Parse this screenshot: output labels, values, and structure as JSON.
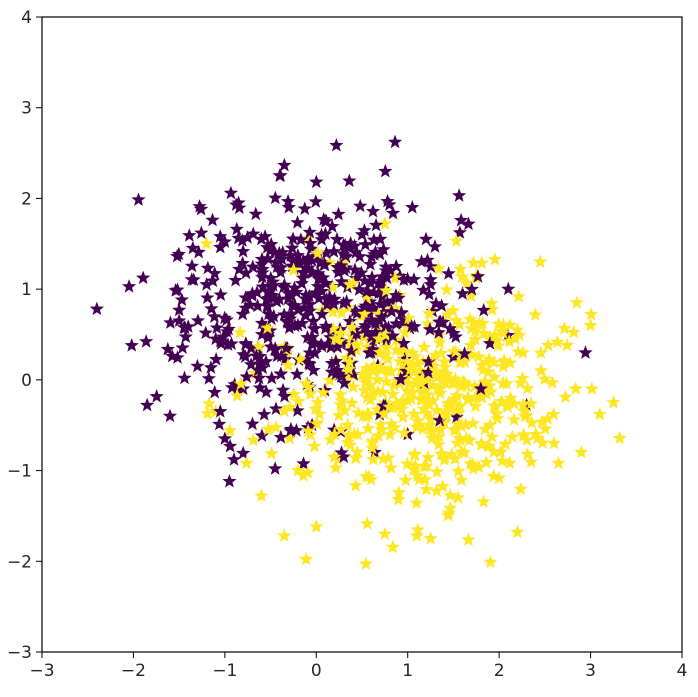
{
  "chart_data": {
    "type": "scatter",
    "title": "",
    "xlabel": "",
    "ylabel": "",
    "xlim": [
      -3,
      4
    ],
    "ylim": [
      -3,
      4
    ],
    "grid": false,
    "marker": "star",
    "x_ticks": [
      "−3",
      "−2",
      "−1",
      "0",
      "1",
      "2",
      "3",
      "4"
    ],
    "y_ticks": [
      "−3",
      "−2",
      "−1",
      "0",
      "1",
      "2",
      "3",
      "4"
    ],
    "colors": {
      "class_0": "#440154",
      "class_1": "#fde725"
    },
    "series": [
      {
        "class": 0,
        "color": "#440154",
        "center": [
          -0.1,
          0.8
        ],
        "spread": [
          0.75,
          0.6
        ],
        "count": 500,
        "points": [
          [
            -2.4,
            0.78
          ],
          [
            -1.85,
            -0.28
          ],
          [
            -1.6,
            -0.4
          ],
          [
            -1.35,
            1.45
          ],
          [
            -1.2,
            1.05
          ],
          [
            -1.05,
            -0.35
          ],
          [
            -1.0,
            -0.65
          ],
          [
            -0.95,
            -1.12
          ],
          [
            -0.9,
            -0.88
          ],
          [
            -0.85,
            1.95
          ],
          [
            -0.7,
            0.95
          ],
          [
            -0.6,
            1.55
          ],
          [
            -0.4,
            2.25
          ],
          [
            -0.45,
            -0.98
          ],
          [
            -0.3,
            1.9
          ],
          [
            0.0,
            2.18
          ],
          [
            0.1,
            1.75
          ],
          [
            0.3,
            -0.85
          ],
          [
            0.5,
            1.6
          ],
          [
            0.7,
            1.55
          ],
          [
            0.8,
            1.93
          ],
          [
            1.0,
            -0.6
          ],
          [
            1.05,
            1.9
          ],
          [
            1.2,
            1.55
          ],
          [
            1.25,
            1.05
          ],
          [
            1.35,
            -0.45
          ],
          [
            1.5,
            0.25
          ],
          [
            1.6,
            0.95
          ],
          [
            1.8,
            -0.1
          ],
          [
            1.9,
            0.4
          ],
          [
            2.1,
            1.0
          ],
          [
            2.3,
            -0.28
          ],
          [
            -0.2,
            0.6
          ],
          [
            -0.55,
            0.2
          ],
          [
            -0.8,
            -0.1
          ],
          [
            -1.1,
            0.45
          ],
          [
            -1.3,
            0.15
          ],
          [
            -1.5,
            0.65
          ],
          [
            0.6,
            0.3
          ],
          [
            0.9,
            0.9
          ]
        ]
      },
      {
        "class": 1,
        "color": "#fde725",
        "center": [
          1.15,
          -0.15
        ],
        "spread": [
          0.75,
          0.6
        ],
        "count": 500,
        "points": [
          [
            -1.2,
            1.5
          ],
          [
            -1.1,
            -0.35
          ],
          [
            -0.6,
            -1.28
          ],
          [
            -0.35,
            -1.72
          ],
          [
            -0.2,
            -1.0
          ],
          [
            0.0,
            -1.62
          ],
          [
            0.3,
            1.3
          ],
          [
            0.75,
            -1.7
          ],
          [
            0.75,
            1.72
          ],
          [
            1.1,
            -1.72
          ],
          [
            1.25,
            -1.75
          ],
          [
            1.55,
            -1.3
          ],
          [
            1.75,
            1.15
          ],
          [
            2.2,
            -1.68
          ],
          [
            2.4,
            -0.6
          ],
          [
            2.45,
            1.3
          ],
          [
            2.6,
            -0.7
          ],
          [
            2.65,
            -0.92
          ],
          [
            2.9,
            -0.8
          ],
          [
            3.0,
            0.6
          ],
          [
            3.1,
            -0.38
          ],
          [
            3.25,
            -0.25
          ],
          [
            2.85,
            0.85
          ],
          [
            2.2,
            0.55
          ],
          [
            0.4,
            0.05
          ],
          [
            0.8,
            -0.3
          ],
          [
            1.4,
            0.2
          ],
          [
            1.9,
            -0.5
          ],
          [
            0.2,
            -0.6
          ],
          [
            0.6,
            -1.1
          ]
        ]
      }
    ]
  }
}
